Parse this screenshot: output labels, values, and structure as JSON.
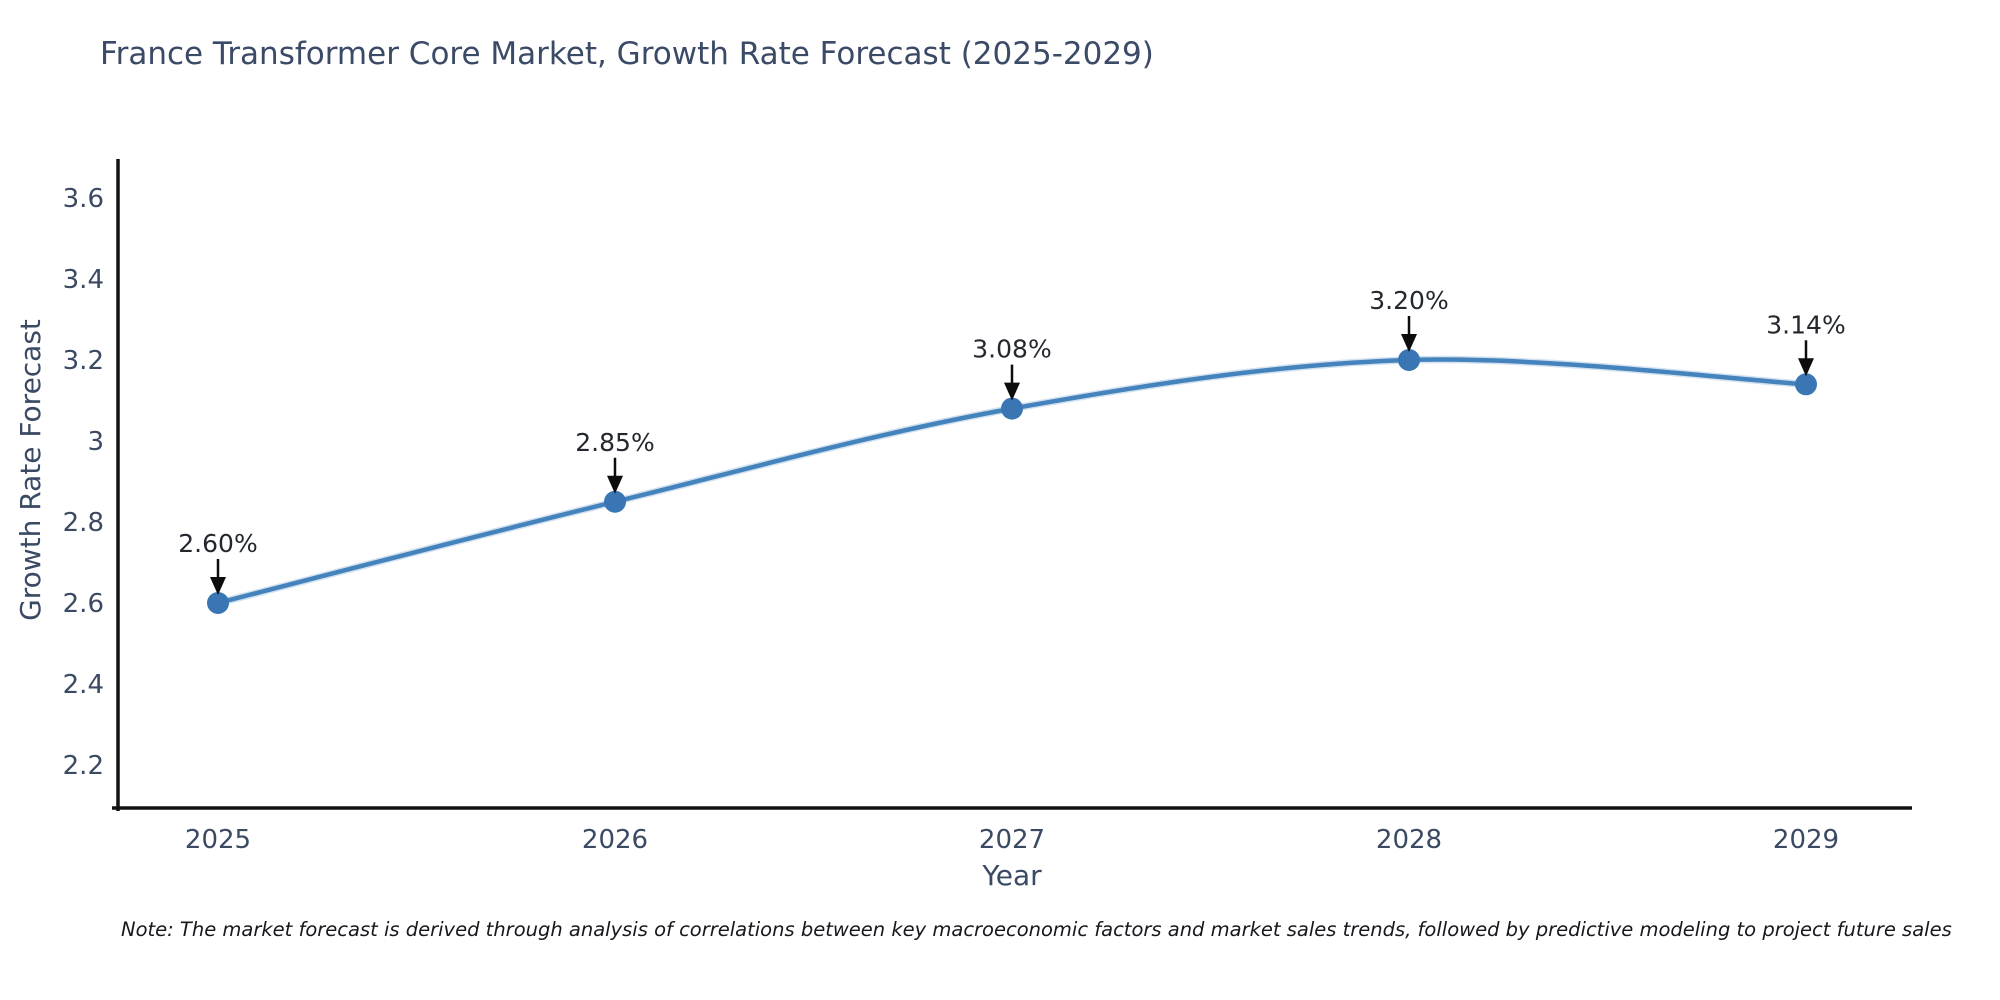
{
  "title": "France Transformer Core Market, Growth Rate Forecast (2025-2029)",
  "note": "Note: The market forecast is derived through analysis of correlations between key macroeconomic factors and market sales trends, followed by predictive modeling to project future sales",
  "chart_data": {
    "type": "line",
    "title": "France Transformer Core Market, Growth Rate Forecast (2025-2029)",
    "x": [
      2025,
      2026,
      2027,
      2028,
      2029
    ],
    "x_tick_labels": [
      "2025",
      "2026",
      "2027",
      "2028",
      "2029"
    ],
    "series": [
      {
        "name": "Growth Rate Forecast",
        "values": [
          2.6,
          2.85,
          3.08,
          3.2,
          3.14
        ],
        "point_labels": [
          "2.60%",
          "2.85%",
          "3.08%",
          "3.20%",
          "3.14%"
        ]
      }
    ],
    "xlabel": "Year",
    "ylabel": "Growth Rate Forecast",
    "yticks": [
      2.2,
      2.4,
      2.6,
      2.8,
      3,
      3.2,
      3.4,
      3.6
    ],
    "ytick_labels": [
      "2.2",
      "2.4",
      "2.6",
      "2.8",
      "3",
      "3.2",
      "3.4",
      "3.6"
    ],
    "ylim": [
      2.1,
      3.7
    ],
    "line_shape": "spline",
    "grid": false,
    "legend": "none",
    "annotations_style": "down-arrow-with-label",
    "colors": {
      "line": "#4583bd",
      "line_halo": "#aecbe4",
      "marker": "#3a76b4",
      "axis_line": "#121212",
      "tick_text": "#3b4a63",
      "axis_title_text": "#3b4a63",
      "annotation_text": "#23272e",
      "arrow": "#0d0d0d",
      "title_text": "#3b4a66",
      "background": "#ffffff"
    }
  }
}
